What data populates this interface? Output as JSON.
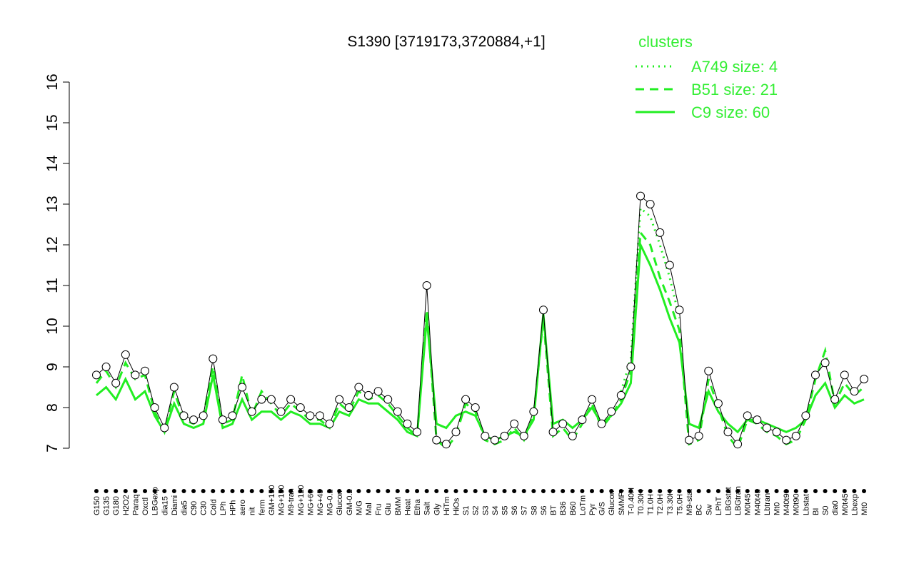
{
  "chart_data": {
    "type": "line",
    "title": "S1390 [3719173,3720884,+1]",
    "legend_title": "clusters",
    "legend_position": "top-right",
    "legend_color": "#33ee33",
    "ylim": [
      7,
      16
    ],
    "yticks": [
      7,
      8,
      9,
      10,
      11,
      12,
      13,
      14,
      15,
      16
    ],
    "grid": false,
    "categories": [
      "G150",
      "G135",
      "G180",
      "H2O2",
      "Paraq",
      "Oxctl",
      "LBGexp",
      "dia15",
      "Diami",
      "dia5",
      "C90",
      "C30",
      "Cold",
      "LPh",
      "HPh",
      "aero",
      "nit",
      "ferm",
      "GM+150",
      "MG+150",
      "M9-tran",
      "MG+120",
      "MG+60",
      "MG+45",
      "MG-0.2",
      "Glucon",
      "GM-0.2",
      "M/G",
      "Mal",
      "Fru",
      "Glu",
      "BMM",
      "Heat",
      "Etha",
      "Salt",
      "Gly",
      "HiTm",
      "HiOs",
      "S1",
      "S2",
      "S3",
      "S4",
      "S5",
      "S6",
      "S7",
      "S8",
      "S6",
      "BT",
      "B36",
      "B60",
      "LoTm",
      "Pyr",
      "G/S",
      "Glucon",
      "SMMPr",
      "T-0.40H",
      "T0.30H",
      "T1.0H",
      "T2.0H",
      "T3.30H",
      "T5.0H",
      "M9-stat",
      "BC",
      "Sw",
      "LPhT",
      "LBGstat",
      "LBGtran",
      "M0t45",
      "M40t45",
      "Lbtran",
      "Mt0",
      "M40t90",
      "M0t90",
      "Lbstat",
      "BI",
      "S0",
      "dia0",
      "M0t45",
      "Lbexp",
      "Mt0"
    ],
    "values": [
      8.8,
      9.0,
      8.6,
      9.3,
      8.8,
      8.9,
      8.0,
      7.5,
      8.5,
      7.8,
      7.7,
      7.8,
      9.2,
      7.7,
      7.8,
      8.5,
      7.9,
      8.2,
      8.2,
      7.9,
      8.2,
      8.0,
      7.8,
      7.8,
      7.6,
      8.2,
      8.0,
      8.5,
      8.3,
      8.4,
      8.2,
      7.9,
      7.6,
      7.4,
      11.0,
      7.2,
      7.1,
      7.4,
      8.2,
      8.0,
      7.3,
      7.2,
      7.3,
      7.6,
      7.3,
      7.9,
      10.4,
      7.4,
      7.6,
      7.3,
      7.7,
      8.2,
      7.6,
      7.9,
      8.3,
      9.0,
      13.2,
      13.0,
      12.3,
      11.5,
      10.4,
      7.2,
      7.3,
      8.9,
      8.1,
      7.4,
      7.1,
      7.8,
      7.7,
      7.5,
      7.4,
      7.2,
      7.3,
      7.8,
      8.8,
      9.1,
      8.2,
      8.8,
      8.4,
      8.7
    ],
    "color": "#000000",
    "series": [
      {
        "name": "A749 size: 4",
        "color": "#22ee22",
        "linestyle": "dotted",
        "values": [
          null,
          null,
          null,
          null,
          null,
          null,
          null,
          null,
          null,
          null,
          null,
          null,
          null,
          null,
          null,
          null,
          null,
          null,
          null,
          null,
          null,
          null,
          null,
          null,
          null,
          null,
          null,
          null,
          null,
          null,
          null,
          null,
          null,
          null,
          null,
          null,
          null,
          null,
          null,
          null,
          null,
          null,
          null,
          null,
          null,
          null,
          null,
          null,
          null,
          null,
          null,
          null,
          null,
          null,
          8.4,
          9.2,
          12.9,
          12.7,
          12.0,
          11.2,
          10.2,
          null,
          null,
          null,
          null,
          null,
          null,
          null,
          null,
          null,
          null,
          null,
          null,
          null,
          null,
          null,
          null,
          null,
          null,
          null
        ]
      },
      {
        "name": "B51 size: 21",
        "color": "#22ee22",
        "linestyle": "dashed",
        "values": [
          8.6,
          8.9,
          8.5,
          9.1,
          8.7,
          8.8,
          7.9,
          7.4,
          8.4,
          7.7,
          7.6,
          7.8,
          9.0,
          7.6,
          7.7,
          8.8,
          7.8,
          8.4,
          8.1,
          7.8,
          8.1,
          7.9,
          7.7,
          7.7,
          7.5,
          8.1,
          7.9,
          8.4,
          8.2,
          8.3,
          8.1,
          7.8,
          7.5,
          7.3,
          10.4,
          7.2,
          7.0,
          7.3,
          8.1,
          7.9,
          7.2,
          7.1,
          7.2,
          7.5,
          7.2,
          7.8,
          10.2,
          7.3,
          7.5,
          7.2,
          7.6,
          8.1,
          7.5,
          7.8,
          8.2,
          8.9,
          12.3,
          12.0,
          11.2,
          10.6,
          9.9,
          7.1,
          7.2,
          8.7,
          8.0,
          7.3,
          7.0,
          7.7,
          7.6,
          7.4,
          7.3,
          7.1,
          7.2,
          7.7,
          8.7,
          9.4,
          8.1,
          8.6,
          8.3,
          8.5
        ]
      },
      {
        "name": "C9 size: 60",
        "color": "#22ee22",
        "linestyle": "solid",
        "values": [
          8.3,
          8.5,
          8.2,
          8.7,
          8.2,
          8.4,
          7.8,
          7.4,
          8.1,
          7.6,
          7.5,
          7.6,
          8.8,
          7.5,
          7.6,
          8.2,
          7.7,
          7.9,
          7.9,
          7.7,
          7.9,
          7.8,
          7.6,
          7.6,
          7.5,
          7.9,
          7.8,
          8.2,
          8.1,
          8.1,
          7.9,
          7.7,
          7.4,
          7.3,
          10.2,
          7.6,
          7.5,
          7.8,
          7.9,
          7.8,
          7.3,
          7.2,
          7.3,
          7.4,
          7.3,
          7.7,
          10.3,
          7.6,
          7.7,
          7.5,
          7.7,
          8.0,
          7.6,
          7.8,
          8.1,
          8.6,
          12.0,
          11.5,
          10.9,
          10.2,
          9.6,
          7.6,
          7.5,
          8.4,
          7.9,
          7.6,
          7.4,
          7.7,
          7.7,
          7.6,
          7.5,
          7.4,
          7.5,
          7.7,
          8.3,
          8.6,
          8.0,
          8.3,
          8.1,
          8.2
        ]
      }
    ]
  }
}
